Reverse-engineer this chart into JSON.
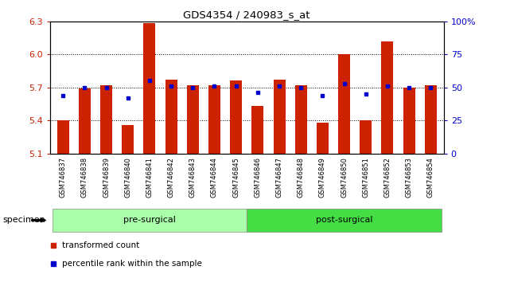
{
  "title": "GDS4354 / 240983_s_at",
  "samples": [
    "GSM746837",
    "GSM746838",
    "GSM746839",
    "GSM746840",
    "GSM746841",
    "GSM746842",
    "GSM746843",
    "GSM746844",
    "GSM746845",
    "GSM746846",
    "GSM746847",
    "GSM746848",
    "GSM746849",
    "GSM746850",
    "GSM746851",
    "GSM746852",
    "GSM746853",
    "GSM746854"
  ],
  "bar_values": [
    5.4,
    5.69,
    5.72,
    5.36,
    6.28,
    5.77,
    5.72,
    5.72,
    5.76,
    5.53,
    5.77,
    5.72,
    5.38,
    6.0,
    5.4,
    6.12,
    5.7,
    5.72
  ],
  "dot_pct": [
    44,
    50,
    50,
    42,
    55,
    51,
    50,
    51,
    51,
    46,
    51,
    50,
    44,
    53,
    45,
    51,
    50,
    50
  ],
  "ylim_left": [
    5.1,
    6.3
  ],
  "ylim_right": [
    0,
    100
  ],
  "yticks_left": [
    5.1,
    5.4,
    5.7,
    6.0,
    6.3
  ],
  "yticks_right": [
    0,
    25,
    50,
    75,
    100
  ],
  "ytick_labels_right": [
    "0",
    "25",
    "50",
    "75",
    "100%"
  ],
  "bar_color": "#CC2200",
  "dot_color": "#0000CC",
  "bar_bottom": 5.1,
  "pre_surgical_count": 9,
  "group_labels": [
    "pre-surgical",
    "post-surgical"
  ],
  "group_light_color": "#AAFFAA",
  "group_dark_color": "#44DD44",
  "legend_items": [
    "transformed count",
    "percentile rank within the sample"
  ],
  "legend_colors": [
    "#CC2200",
    "#0000CC"
  ],
  "grid_yticks": [
    5.4,
    5.7,
    6.0
  ],
  "tick_bg": "#C8C8C8",
  "fig_width": 6.41,
  "fig_height": 3.54,
  "bar_width": 0.55
}
